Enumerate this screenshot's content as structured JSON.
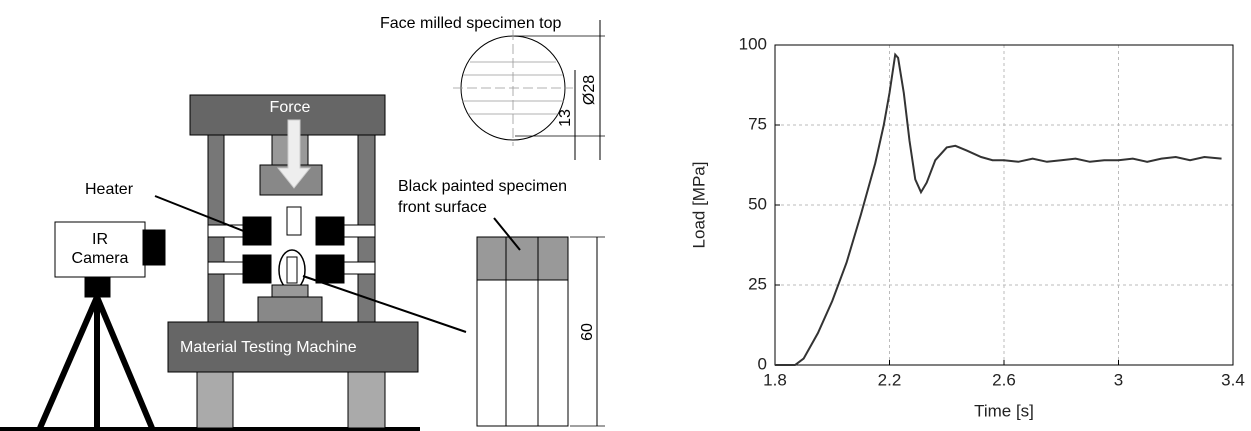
{
  "diagram": {
    "specimen_top_title": "Face milled specimen top",
    "diameter_label": "Ø28",
    "offset_label": "13",
    "force_label": "Force",
    "heater_label": "Heater",
    "camera_label": [
      "IR",
      "Camera"
    ],
    "front_surface_label": [
      "Black painted specimen",
      "front surface"
    ],
    "machine_label": "Material Testing Machine",
    "length_label": "60"
  },
  "chart_data": {
    "type": "line",
    "xlabel": "Time [s]",
    "ylabel": "Load  [MPa]",
    "x": [
      1.8,
      1.87,
      1.9,
      1.95,
      2.0,
      2.05,
      2.1,
      2.15,
      2.18,
      2.2,
      2.22,
      2.23,
      2.25,
      2.27,
      2.29,
      2.31,
      2.33,
      2.36,
      2.4,
      2.43,
      2.47,
      2.52,
      2.56,
      2.6,
      2.65,
      2.7,
      2.75,
      2.8,
      2.85,
      2.9,
      2.95,
      3.0,
      3.05,
      3.1,
      3.15,
      3.2,
      3.25,
      3.3,
      3.36
    ],
    "series": [
      {
        "color": "#333333",
        "values": [
          0,
          0,
          2,
          10,
          20,
          32,
          47,
          63,
          75,
          85,
          97,
          96,
          85,
          70,
          58,
          54,
          57,
          64,
          68,
          68.5,
          67,
          65,
          64,
          64,
          63.5,
          64.5,
          63.5,
          64,
          64.5,
          63.5,
          64,
          64,
          64.5,
          63.5,
          64.5,
          65,
          64,
          65,
          64.5
        ]
      }
    ],
    "xlim": [
      1.8,
      3.4
    ],
    "xticks": [
      1.8,
      2.2,
      2.6,
      3,
      3.4
    ],
    "ylim": [
      0,
      100
    ],
    "yticks": [
      0,
      25,
      50,
      75,
      100
    ],
    "grid": true
  }
}
